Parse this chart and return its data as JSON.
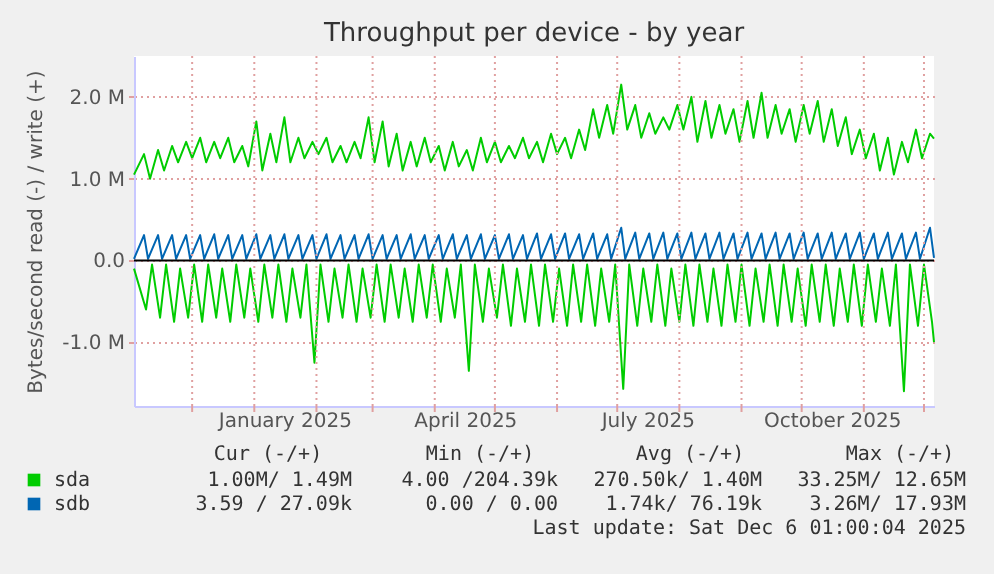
{
  "chart_data": {
    "type": "line",
    "title": "Throughput per device - by year",
    "ylabel": "Bytes/second read (-) / write (+)",
    "xlim": [
      "2024-11-02",
      "2025-12-06"
    ],
    "xticks": [
      {
        "value": "2024-12-01",
        "label": null
      },
      {
        "value": "2025-01-01",
        "label": null
      },
      {
        "value": "2025-01-16",
        "label": "January 2025"
      },
      {
        "value": "2025-02-01",
        "label": null
      },
      {
        "value": "2025-03-01",
        "label": null
      },
      {
        "value": "2025-04-01",
        "label": null
      },
      {
        "value": "2025-04-16",
        "label": "April 2025"
      },
      {
        "value": "2025-05-01",
        "label": null
      },
      {
        "value": "2025-06-01",
        "label": null
      },
      {
        "value": "2025-07-01",
        "label": null
      },
      {
        "value": "2025-07-16",
        "label": "July 2025"
      },
      {
        "value": "2025-08-01",
        "label": null
      },
      {
        "value": "2025-09-01",
        "label": null
      },
      {
        "value": "2025-10-01",
        "label": null
      },
      {
        "value": "2025-10-16",
        "label": "October 2025"
      },
      {
        "value": "2025-11-01",
        "label": null
      },
      {
        "value": "2025-12-01",
        "label": null
      }
    ],
    "ylim": [
      -1.78,
      2.5
    ],
    "yticks": [
      {
        "value": -1,
        "label": "-1.0 M"
      },
      {
        "value": 0,
        "label": "0.0"
      },
      {
        "value": 1,
        "label": "1.0 M"
      },
      {
        "value": 2,
        "label": "2.0 M"
      }
    ],
    "grid": true,
    "legend": "bottom",
    "ref_lines": [
      {
        "axis": "y",
        "value": 0,
        "color": "#000000"
      }
    ],
    "series": [
      {
        "name": "sda",
        "color": "#00cc00",
        "x": [
          "2024-11-02",
          "2024-11-07",
          "2024-11-10",
          "2024-11-14",
          "2024-11-17",
          "2024-11-21",
          "2024-11-24",
          "2024-11-28",
          "2024-12-01",
          "2024-12-05",
          "2024-12-08",
          "2024-12-12",
          "2024-12-15",
          "2024-12-19",
          "2024-12-22",
          "2024-12-26",
          "2024-12-29",
          "2025-01-02",
          "2025-01-05",
          "2025-01-09",
          "2025-01-12",
          "2025-01-16",
          "2025-01-19",
          "2025-01-23",
          "2025-01-26",
          "2025-01-30",
          "2025-02-02",
          "2025-02-06",
          "2025-02-09",
          "2025-02-13",
          "2025-02-16",
          "2025-02-20",
          "2025-02-23",
          "2025-02-27",
          "2025-03-02",
          "2025-03-06",
          "2025-03-09",
          "2025-03-13",
          "2025-03-16",
          "2025-03-20",
          "2025-03-23",
          "2025-03-27",
          "2025-03-30",
          "2025-04-03",
          "2025-04-06",
          "2025-04-10",
          "2025-04-13",
          "2025-04-17",
          "2025-04-20",
          "2025-04-24",
          "2025-04-27",
          "2025-05-01",
          "2025-05-04",
          "2025-05-08",
          "2025-05-11",
          "2025-05-15",
          "2025-05-18",
          "2025-05-22",
          "2025-05-25",
          "2025-05-29",
          "2025-06-01",
          "2025-06-05",
          "2025-06-08",
          "2025-06-12",
          "2025-06-15",
          "2025-06-19",
          "2025-06-22",
          "2025-06-26",
          "2025-06-29",
          "2025-07-03",
          "2025-07-06",
          "2025-07-10",
          "2025-07-13",
          "2025-07-17",
          "2025-07-20",
          "2025-07-24",
          "2025-07-27",
          "2025-07-31",
          "2025-08-03",
          "2025-08-07",
          "2025-08-10",
          "2025-08-14",
          "2025-08-17",
          "2025-08-21",
          "2025-08-24",
          "2025-08-28",
          "2025-08-31",
          "2025-09-04",
          "2025-09-07",
          "2025-09-11",
          "2025-09-14",
          "2025-09-18",
          "2025-09-21",
          "2025-09-25",
          "2025-09-28",
          "2025-10-02",
          "2025-10-05",
          "2025-10-09",
          "2025-10-12",
          "2025-10-16",
          "2025-10-19",
          "2025-10-23",
          "2025-10-26",
          "2025-10-30",
          "2025-11-02",
          "2025-11-06",
          "2025-11-09",
          "2025-11-13",
          "2025-11-16",
          "2025-11-20",
          "2025-11-23",
          "2025-11-27",
          "2025-11-30",
          "2025-12-04",
          "2025-12-06"
        ],
        "values": [
          1.05,
          1.3,
          1.0,
          1.35,
          1.1,
          1.4,
          1.2,
          1.45,
          1.25,
          1.5,
          1.2,
          1.45,
          1.25,
          1.5,
          1.2,
          1.4,
          1.15,
          1.7,
          1.1,
          1.55,
          1.2,
          1.75,
          1.2,
          1.5,
          1.25,
          1.45,
          1.3,
          1.5,
          1.2,
          1.4,
          1.2,
          1.45,
          1.25,
          1.75,
          1.2,
          1.7,
          1.15,
          1.55,
          1.1,
          1.45,
          1.15,
          1.5,
          1.2,
          1.4,
          1.1,
          1.45,
          1.15,
          1.35,
          1.1,
          1.5,
          1.2,
          1.45,
          1.2,
          1.4,
          1.25,
          1.5,
          1.25,
          1.45,
          1.2,
          1.55,
          1.3,
          1.5,
          1.25,
          1.6,
          1.35,
          1.85,
          1.5,
          1.9,
          1.55,
          2.15,
          1.6,
          1.9,
          1.5,
          1.8,
          1.55,
          1.75,
          1.6,
          1.9,
          1.6,
          2.0,
          1.45,
          1.95,
          1.5,
          1.9,
          1.55,
          1.85,
          1.45,
          1.95,
          1.5,
          2.05,
          1.5,
          1.9,
          1.55,
          1.85,
          1.45,
          1.9,
          1.55,
          1.95,
          1.45,
          1.85,
          1.4,
          1.75,
          1.3,
          1.6,
          1.25,
          1.55,
          1.1,
          1.5,
          1.05,
          1.45,
          1.2,
          1.6,
          1.25,
          1.55,
          1.49
        ]
      },
      {
        "color": "#00cc00",
        "x": [
          "2024-11-02",
          "2024-11-08",
          "2024-11-11",
          "2024-11-15",
          "2024-11-18",
          "2024-11-22",
          "2024-11-25",
          "2024-11-29",
          "2024-12-02",
          "2024-12-06",
          "2024-12-09",
          "2024-12-13",
          "2024-12-16",
          "2024-12-20",
          "2024-12-23",
          "2024-12-27",
          "2024-12-30",
          "2025-01-03",
          "2025-01-06",
          "2025-01-10",
          "2025-01-13",
          "2025-01-17",
          "2025-01-20",
          "2025-01-24",
          "2025-01-27",
          "2025-01-31",
          "2025-02-03",
          "2025-02-07",
          "2025-02-10",
          "2025-02-14",
          "2025-02-17",
          "2025-02-21",
          "2025-02-24",
          "2025-02-28",
          "2025-03-03",
          "2025-03-07",
          "2025-03-10",
          "2025-03-14",
          "2025-03-17",
          "2025-03-21",
          "2025-03-24",
          "2025-03-28",
          "2025-03-31",
          "2025-04-04",
          "2025-04-07",
          "2025-04-11",
          "2025-04-14",
          "2025-04-18",
          "2025-04-21",
          "2025-04-25",
          "2025-04-28",
          "2025-05-02",
          "2025-05-05",
          "2025-05-09",
          "2025-05-12",
          "2025-05-16",
          "2025-05-19",
          "2025-05-23",
          "2025-05-26",
          "2025-05-30",
          "2025-06-02",
          "2025-06-06",
          "2025-06-09",
          "2025-06-13",
          "2025-06-16",
          "2025-06-20",
          "2025-06-23",
          "2025-06-27",
          "2025-06-30",
          "2025-07-04",
          "2025-07-07",
          "2025-07-11",
          "2025-07-14",
          "2025-07-18",
          "2025-07-21",
          "2025-07-25",
          "2025-07-28",
          "2025-08-01",
          "2025-08-04",
          "2025-08-08",
          "2025-08-11",
          "2025-08-15",
          "2025-08-18",
          "2025-08-22",
          "2025-08-25",
          "2025-08-29",
          "2025-09-01",
          "2025-09-05",
          "2025-09-08",
          "2025-09-12",
          "2025-09-15",
          "2025-09-19",
          "2025-09-22",
          "2025-09-26",
          "2025-09-29",
          "2025-10-03",
          "2025-10-06",
          "2025-10-10",
          "2025-10-13",
          "2025-10-17",
          "2025-10-20",
          "2025-10-24",
          "2025-10-27",
          "2025-10-31",
          "2025-11-03",
          "2025-11-07",
          "2025-11-10",
          "2025-11-14",
          "2025-11-17",
          "2025-11-21",
          "2025-11-24",
          "2025-11-28",
          "2025-12-01",
          "2025-12-05",
          "2025-12-06"
        ],
        "values": [
          -0.1,
          -0.6,
          -0.05,
          -0.7,
          -0.05,
          -0.75,
          -0.1,
          -0.7,
          -0.05,
          -0.75,
          -0.05,
          -0.7,
          -0.1,
          -0.75,
          -0.05,
          -0.7,
          -0.1,
          -0.75,
          -0.05,
          -0.7,
          -0.05,
          -0.75,
          -0.1,
          -0.7,
          -0.05,
          -1.25,
          -0.05,
          -0.75,
          -0.1,
          -0.7,
          -0.05,
          -0.75,
          -0.1,
          -0.7,
          -0.05,
          -0.75,
          -0.05,
          -0.7,
          -0.1,
          -0.75,
          -0.05,
          -0.7,
          -0.05,
          -0.75,
          -0.1,
          -0.7,
          -0.05,
          -1.35,
          -0.05,
          -0.75,
          -0.1,
          -0.7,
          -0.05,
          -0.8,
          -0.1,
          -0.75,
          -0.05,
          -0.8,
          -0.05,
          -0.75,
          -0.1,
          -0.8,
          -0.05,
          -0.75,
          -0.05,
          -0.8,
          -0.1,
          -0.75,
          -0.05,
          -1.57,
          -0.05,
          -0.8,
          -0.1,
          -0.75,
          -0.05,
          -0.8,
          -0.1,
          -0.75,
          -0.05,
          -0.8,
          -0.05,
          -0.75,
          -0.1,
          -0.8,
          -0.05,
          -0.75,
          -0.05,
          -0.8,
          -0.1,
          -0.75,
          -0.05,
          -0.8,
          -0.05,
          -0.75,
          -0.1,
          -0.8,
          -0.05,
          -0.75,
          -0.05,
          -0.8,
          -0.1,
          -0.75,
          -0.05,
          -0.8,
          -0.05,
          -0.75,
          -0.1,
          -0.8,
          -0.05,
          -1.6,
          -0.05,
          -0.8,
          -0.05,
          -0.75,
          -1.0
        ]
      },
      {
        "name": "sdb",
        "color": "#0066b3",
        "x": [
          "2024-11-02",
          "2024-11-07",
          "2024-11-09",
          "2024-11-14",
          "2024-11-16",
          "2024-11-21",
          "2024-11-23",
          "2024-11-28",
          "2024-11-30",
          "2024-12-05",
          "2024-12-07",
          "2024-12-12",
          "2024-12-14",
          "2024-12-19",
          "2024-12-21",
          "2024-12-26",
          "2024-12-28",
          "2025-01-02",
          "2025-01-04",
          "2025-01-09",
          "2025-01-11",
          "2025-01-16",
          "2025-01-18",
          "2025-01-23",
          "2025-01-25",
          "2025-01-30",
          "2025-02-01",
          "2025-02-06",
          "2025-02-08",
          "2025-02-13",
          "2025-02-15",
          "2025-02-20",
          "2025-02-22",
          "2025-02-27",
          "2025-03-01",
          "2025-03-06",
          "2025-03-08",
          "2025-03-13",
          "2025-03-15",
          "2025-03-20",
          "2025-03-22",
          "2025-03-27",
          "2025-03-29",
          "2025-04-03",
          "2025-04-05",
          "2025-04-10",
          "2025-04-12",
          "2025-04-17",
          "2025-04-19",
          "2025-04-24",
          "2025-04-26",
          "2025-05-01",
          "2025-05-03",
          "2025-05-08",
          "2025-05-10",
          "2025-05-15",
          "2025-05-17",
          "2025-05-22",
          "2025-05-24",
          "2025-05-29",
          "2025-05-31",
          "2025-06-05",
          "2025-06-07",
          "2025-06-12",
          "2025-06-14",
          "2025-06-19",
          "2025-06-21",
          "2025-06-26",
          "2025-06-28",
          "2025-07-03",
          "2025-07-05",
          "2025-07-10",
          "2025-07-12",
          "2025-07-17",
          "2025-07-19",
          "2025-07-24",
          "2025-07-26",
          "2025-07-31",
          "2025-08-02",
          "2025-08-07",
          "2025-08-09",
          "2025-08-14",
          "2025-08-16",
          "2025-08-21",
          "2025-08-23",
          "2025-08-28",
          "2025-08-30",
          "2025-09-04",
          "2025-09-06",
          "2025-09-11",
          "2025-09-13",
          "2025-09-18",
          "2025-09-20",
          "2025-09-25",
          "2025-09-27",
          "2025-10-02",
          "2025-10-04",
          "2025-10-09",
          "2025-10-11",
          "2025-10-16",
          "2025-10-18",
          "2025-10-23",
          "2025-10-25",
          "2025-10-30",
          "2025-11-01",
          "2025-11-06",
          "2025-11-08",
          "2025-11-13",
          "2025-11-15",
          "2025-11-20",
          "2025-11-22",
          "2025-11-27",
          "2025-11-29",
          "2025-12-04",
          "2025-12-06"
        ],
        "values": [
          0.02,
          0.31,
          0.02,
          0.31,
          0.02,
          0.31,
          0.02,
          0.31,
          0.02,
          0.31,
          0.02,
          0.32,
          0.02,
          0.31,
          0.02,
          0.31,
          0.02,
          0.32,
          0.02,
          0.31,
          0.02,
          0.32,
          0.02,
          0.31,
          0.02,
          0.31,
          0.02,
          0.32,
          0.02,
          0.31,
          0.02,
          0.31,
          0.02,
          0.32,
          0.02,
          0.31,
          0.02,
          0.31,
          0.02,
          0.32,
          0.02,
          0.31,
          0.02,
          0.31,
          0.02,
          0.32,
          0.02,
          0.31,
          0.02,
          0.32,
          0.02,
          0.31,
          0.02,
          0.32,
          0.02,
          0.31,
          0.02,
          0.33,
          0.02,
          0.32,
          0.02,
          0.33,
          0.02,
          0.32,
          0.02,
          0.33,
          0.02,
          0.32,
          0.02,
          0.4,
          0.02,
          0.34,
          0.02,
          0.33,
          0.02,
          0.34,
          0.02,
          0.33,
          0.02,
          0.34,
          0.02,
          0.33,
          0.02,
          0.34,
          0.02,
          0.33,
          0.02,
          0.34,
          0.02,
          0.33,
          0.02,
          0.34,
          0.02,
          0.33,
          0.02,
          0.34,
          0.02,
          0.33,
          0.02,
          0.34,
          0.02,
          0.33,
          0.02,
          0.34,
          0.02,
          0.33,
          0.02,
          0.34,
          0.02,
          0.33,
          0.02,
          0.34,
          0.02,
          0.4,
          0.03
        ]
      }
    ],
    "annotations": [
      "Cur (-/+)",
      "Min (-/+)",
      "Avg (-/+)",
      "Max (-/+)",
      "1.00M/  1.49M",
      "4.00 /204.39k",
      "270.50k/  1.40M",
      "33.25M/ 12.65M",
      "3.59 / 27.09k",
      "0.00 /  0.00",
      "1.74k/ 76.19k",
      "3.26M/ 17.93M",
      "Last update: Sat Dec  6 01:00:04 2025"
    ]
  }
}
